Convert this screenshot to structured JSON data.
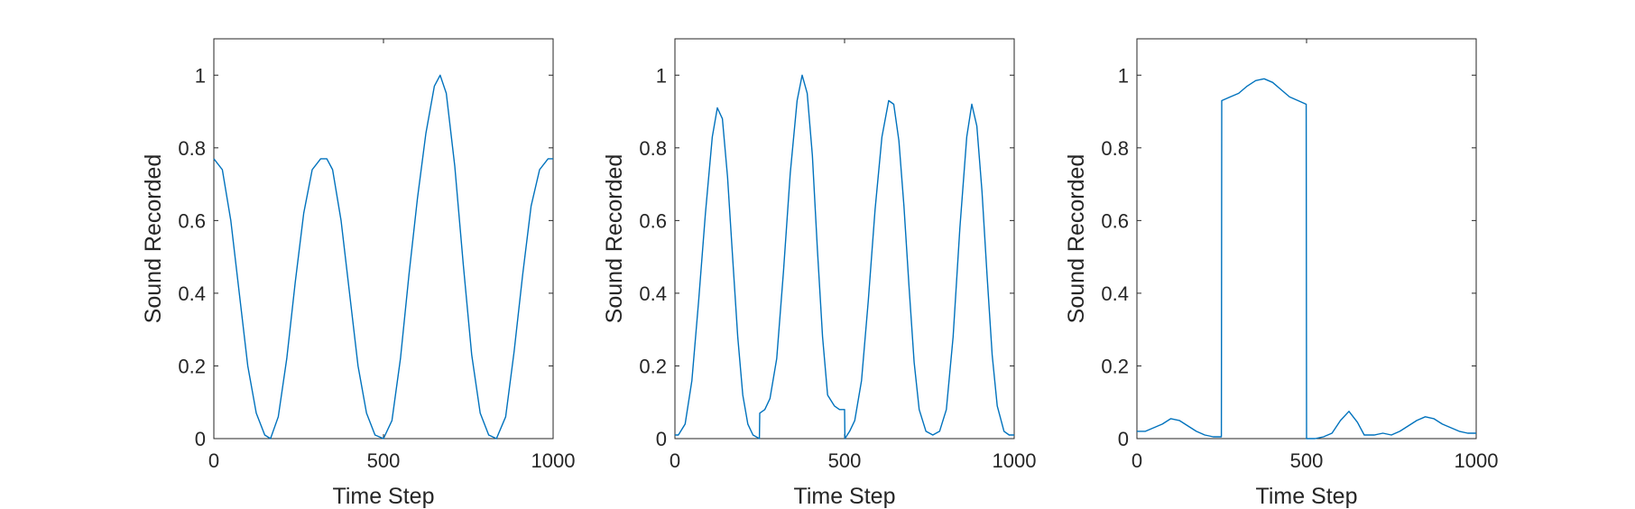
{
  "chart_data": [
    {
      "type": "line",
      "xlabel": "Time Step",
      "ylabel": "Sound Recorded",
      "xlim": [
        0,
        1000
      ],
      "ylim": [
        0,
        1.1
      ],
      "xticks": [
        0,
        500,
        1000
      ],
      "yticks": [
        0,
        0.2,
        0.4,
        0.6,
        0.8,
        1
      ],
      "xtick_labels": [
        "0",
        "500",
        "1000"
      ],
      "ytick_labels": [
        "0",
        "0.2",
        "0.4",
        "0.6",
        "0.8",
        "1"
      ],
      "grid": false,
      "line_color": "#0072BD",
      "series": [
        {
          "x": [
            0,
            25,
            50,
            75,
            100,
            125,
            150,
            167,
            190,
            215,
            240,
            265,
            290,
            315,
            333,
            350,
            375,
            400,
            425,
            450,
            475,
            500,
            525,
            550,
            575,
            600,
            625,
            650,
            667,
            685,
            710,
            735,
            760,
            785,
            810,
            833,
            860,
            885,
            910,
            935,
            960,
            985,
            1000
          ],
          "values": [
            0.77,
            0.74,
            0.6,
            0.4,
            0.2,
            0.07,
            0.01,
            0.0,
            0.06,
            0.22,
            0.43,
            0.62,
            0.74,
            0.77,
            0.77,
            0.74,
            0.6,
            0.4,
            0.2,
            0.07,
            0.01,
            0.0,
            0.05,
            0.22,
            0.45,
            0.66,
            0.84,
            0.97,
            1.0,
            0.95,
            0.75,
            0.48,
            0.23,
            0.07,
            0.01,
            0.0,
            0.06,
            0.24,
            0.45,
            0.64,
            0.74,
            0.77,
            0.77
          ]
        }
      ]
    },
    {
      "type": "line",
      "xlabel": "Time Step",
      "ylabel": "Sound Recorded",
      "xlim": [
        0,
        1000
      ],
      "ylim": [
        0,
        1.1
      ],
      "xticks": [
        0,
        500,
        1000
      ],
      "yticks": [
        0,
        0.2,
        0.4,
        0.6,
        0.8,
        1
      ],
      "xtick_labels": [
        "0",
        "500",
        "1000"
      ],
      "ytick_labels": [
        "0",
        "0.2",
        "0.4",
        "0.6",
        "0.8",
        "1"
      ],
      "grid": false,
      "line_color": "#0072BD",
      "series": [
        {
          "x": [
            0,
            10,
            30,
            50,
            70,
            90,
            110,
            125,
            140,
            155,
            170,
            185,
            200,
            215,
            230,
            249,
            250,
            265,
            280,
            300,
            320,
            340,
            360,
            375,
            390,
            405,
            420,
            435,
            450,
            470,
            485,
            500,
            501,
            515,
            530,
            550,
            570,
            590,
            610,
            630,
            645,
            660,
            675,
            690,
            705,
            720,
            740,
            760,
            780,
            800,
            820,
            840,
            860,
            875,
            890,
            905,
            920,
            935,
            950,
            970,
            985,
            1000
          ],
          "values": [
            0.01,
            0.01,
            0.04,
            0.16,
            0.38,
            0.62,
            0.83,
            0.91,
            0.88,
            0.72,
            0.5,
            0.28,
            0.12,
            0.04,
            0.01,
            0.0,
            0.07,
            0.08,
            0.11,
            0.22,
            0.46,
            0.73,
            0.93,
            1.0,
            0.95,
            0.78,
            0.52,
            0.28,
            0.12,
            0.09,
            0.08,
            0.08,
            0.0,
            0.02,
            0.05,
            0.16,
            0.38,
            0.63,
            0.83,
            0.93,
            0.92,
            0.82,
            0.64,
            0.42,
            0.21,
            0.08,
            0.02,
            0.01,
            0.02,
            0.08,
            0.28,
            0.58,
            0.83,
            0.92,
            0.86,
            0.68,
            0.45,
            0.23,
            0.09,
            0.02,
            0.01,
            0.01
          ]
        }
      ]
    },
    {
      "type": "line",
      "xlabel": "Time Step",
      "ylabel": "Sound Recorded",
      "xlim": [
        0,
        1000
      ],
      "ylim": [
        0,
        1.1
      ],
      "xticks": [
        0,
        500,
        1000
      ],
      "yticks": [
        0,
        0.2,
        0.4,
        0.6,
        0.8,
        1
      ],
      "xtick_labels": [
        "0",
        "500",
        "1000"
      ],
      "ytick_labels": [
        "0",
        "0.2",
        "0.4",
        "0.6",
        "0.8",
        "1"
      ],
      "grid": false,
      "line_color": "#0072BD",
      "series": [
        {
          "x": [
            0,
            25,
            50,
            75,
            100,
            125,
            150,
            175,
            200,
            225,
            249,
            250,
            275,
            300,
            325,
            350,
            375,
            400,
            425,
            450,
            475,
            499,
            500,
            525,
            550,
            575,
            600,
            625,
            650,
            670,
            700,
            725,
            750,
            775,
            800,
            825,
            850,
            875,
            900,
            925,
            950,
            975,
            1000
          ],
          "values": [
            0.02,
            0.02,
            0.03,
            0.04,
            0.055,
            0.05,
            0.035,
            0.02,
            0.01,
            0.005,
            0.005,
            0.93,
            0.94,
            0.95,
            0.97,
            0.985,
            0.99,
            0.98,
            0.96,
            0.94,
            0.93,
            0.92,
            0.0,
            0.0,
            0.005,
            0.015,
            0.05,
            0.075,
            0.045,
            0.01,
            0.01,
            0.015,
            0.01,
            0.02,
            0.035,
            0.05,
            0.06,
            0.055,
            0.04,
            0.03,
            0.02,
            0.015,
            0.015
          ]
        }
      ]
    }
  ]
}
